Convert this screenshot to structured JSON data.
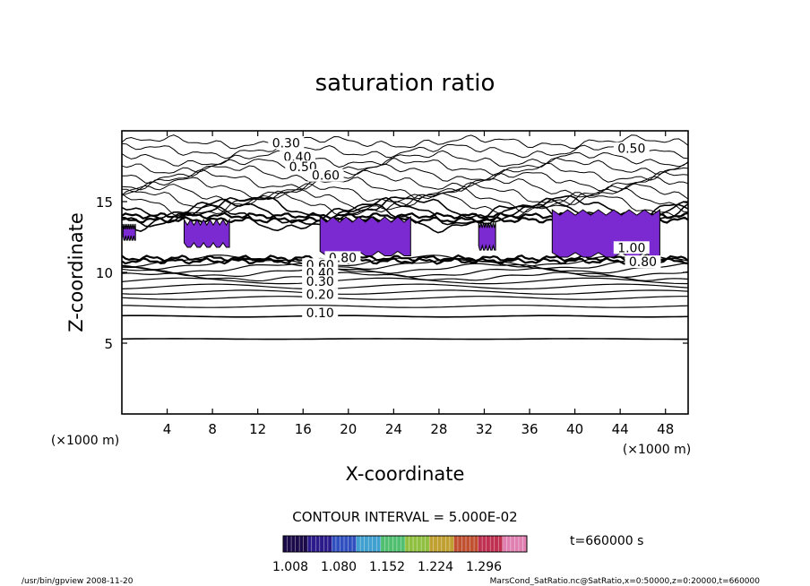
{
  "chart_data": {
    "type": "contour",
    "title": "saturation ratio",
    "xlabel": "X-coordinate",
    "ylabel": "Z-coordinate",
    "x_unit_left": "(×1000 m)",
    "x_unit_right": "(×1000 m)",
    "xlim": [
      0,
      50
    ],
    "ylim": [
      0,
      20
    ],
    "x_ticks": [
      "4",
      "8",
      "12",
      "16",
      "20",
      "24",
      "28",
      "32",
      "36",
      "40",
      "44",
      "48"
    ],
    "y_ticks": [
      "5",
      "10",
      "15"
    ],
    "contour_labels": [
      {
        "text": "0.30",
        "x": 14.5,
        "z": 18.9
      },
      {
        "text": "0.40",
        "x": 15.5,
        "z": 17.9
      },
      {
        "text": "0.50",
        "x": 16,
        "z": 17.2
      },
      {
        "text": "0.60",
        "x": 18,
        "z": 16.6
      },
      {
        "text": "0.50",
        "x": 45,
        "z": 18.5
      },
      {
        "text": "0.80",
        "x": 19.5,
        "z": 10.8
      },
      {
        "text": "0.60",
        "x": 17.5,
        "z": 10.3
      },
      {
        "text": "0.40",
        "x": 17.5,
        "z": 9.7
      },
      {
        "text": "0.30",
        "x": 17.5,
        "z": 9.1
      },
      {
        "text": "0.20",
        "x": 17.5,
        "z": 8.2
      },
      {
        "text": "0.10",
        "x": 17.5,
        "z": 6.9
      },
      {
        "text": "0.80",
        "x": 46,
        "z": 10.5
      },
      {
        "text": "1.00",
        "x": 45,
        "z": 11.5
      }
    ],
    "contour_lines_z": [
      5.3,
      6.9,
      7.6,
      8.2,
      8.6,
      9.0,
      9.4,
      9.7,
      10.0,
      10.3,
      10.6,
      10.8
    ],
    "supersaturated_regions": [
      {
        "x": [
          0.1,
          1.2
        ],
        "z": [
          12.4,
          13.3
        ]
      },
      {
        "x": [
          5.5,
          9.5
        ],
        "z": [
          11.9,
          13.6
        ]
      },
      {
        "x": [
          17.5,
          25.5
        ],
        "z": [
          11.3,
          13.8
        ]
      },
      {
        "x": [
          31.5,
          33
        ],
        "z": [
          11.7,
          13.4
        ]
      },
      {
        "x": [
          38,
          47.5
        ],
        "z": [
          11.2,
          14.3
        ]
      }
    ],
    "contour_interval_text": "CONTOUR INTERVAL = 5.000E-02",
    "colorbar": {
      "tick_labels": [
        "1.008",
        "1.080",
        "1.152",
        "1.224",
        "1.296"
      ],
      "colors": [
        "#1a0a4a",
        "#2a1a8a",
        "#3050c0",
        "#40a0d0",
        "#50c070",
        "#90c040",
        "#c0a030",
        "#c05030",
        "#c03050",
        "#e080b0"
      ]
    },
    "time_label": "t=660000 s",
    "fill_color": "#7a2ad0"
  },
  "footer": {
    "left": "/usr/bin/gpview  2008-11-20",
    "right": "MarsCond_SatRatio.nc@SatRatio,x=0:50000,z=0:20000,t=660000"
  }
}
